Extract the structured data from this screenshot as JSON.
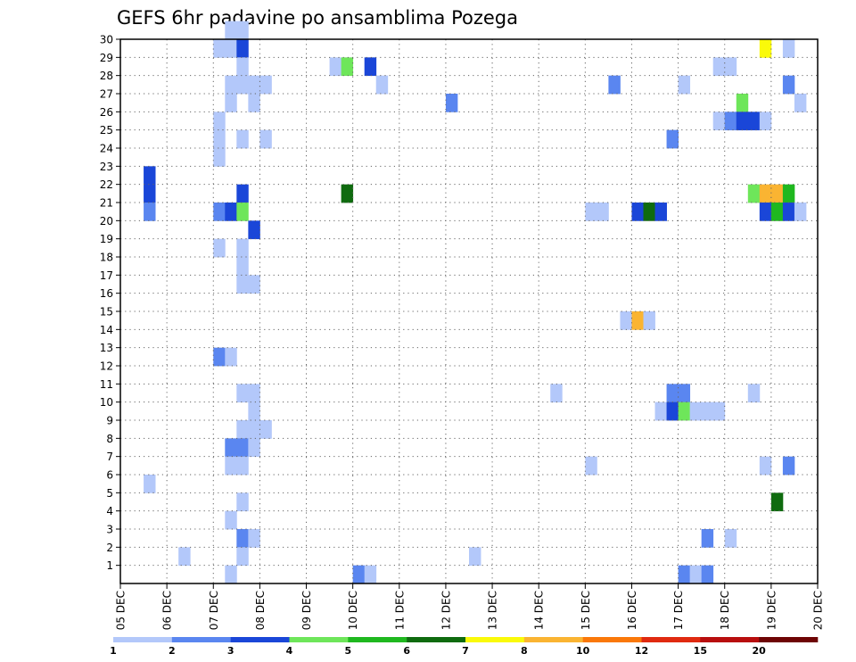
{
  "chart_data": {
    "type": "heatmap",
    "title": "GEFS 6hr padavine po ansamblima Pozega",
    "x_tick_labels": [
      "05 DEC",
      "06 DEC",
      "07 DEC",
      "08 DEC",
      "09 DEC",
      "10 DEC",
      "11 DEC",
      "12 DEC",
      "13 DEC",
      "14 DEC",
      "15 DEC",
      "16 DEC",
      "17 DEC",
      "18 DEC",
      "19 DEC",
      "20 DEC"
    ],
    "x_days_per_tick": 1,
    "steps_per_day": 4,
    "y_tick_labels": [
      "1",
      "2",
      "3",
      "4",
      "5",
      "6",
      "7",
      "8",
      "9",
      "10",
      "11",
      "12",
      "13",
      "14",
      "15",
      "16",
      "17",
      "18",
      "19",
      "20",
      "21",
      "22",
      "23",
      "24",
      "25",
      "26",
      "27",
      "28",
      "29",
      "30"
    ],
    "ylim": [
      0,
      30
    ],
    "grid": true,
    "legend_position": "bottom",
    "legend": {
      "labels": [
        "1",
        "2",
        "3",
        "4",
        "5",
        "6",
        "7",
        "8",
        "10",
        "12",
        "15",
        "20"
      ],
      "colors": [
        "#b3c8fa",
        "#5a86f0",
        "#1a46d8",
        "#6ee65a",
        "#1fb81f",
        "#0f6b0f",
        "#fafa0a",
        "#fab432",
        "#fa780a",
        "#e02a10",
        "#b80e0e",
        "#6e0404"
      ]
    },
    "cells": [
      [
        9,
        30,
        1
      ],
      [
        10,
        30,
        1
      ],
      [
        8,
        29,
        1
      ],
      [
        9,
        29,
        1
      ],
      [
        10,
        29,
        3
      ],
      [
        55,
        29,
        7
      ],
      [
        57,
        29,
        1
      ],
      [
        10,
        28,
        1
      ],
      [
        18,
        28,
        1
      ],
      [
        19,
        28,
        4
      ],
      [
        21,
        28,
        3
      ],
      [
        51,
        28,
        1
      ],
      [
        52,
        28,
        1
      ],
      [
        9,
        27,
        1
      ],
      [
        10,
        27,
        1
      ],
      [
        11,
        27,
        1
      ],
      [
        12,
        27,
        1
      ],
      [
        22,
        27,
        1
      ],
      [
        42,
        27,
        2
      ],
      [
        48,
        27,
        1
      ],
      [
        57,
        27,
        2
      ],
      [
        9,
        26,
        1
      ],
      [
        11,
        26,
        1
      ],
      [
        28,
        26,
        2
      ],
      [
        53,
        26,
        4
      ],
      [
        58,
        26,
        1
      ],
      [
        8,
        25,
        1
      ],
      [
        51,
        25,
        1
      ],
      [
        52,
        25,
        2
      ],
      [
        53,
        25,
        3
      ],
      [
        54,
        25,
        3
      ],
      [
        55,
        25,
        1
      ],
      [
        8,
        24,
        1
      ],
      [
        10,
        24,
        1
      ],
      [
        12,
        24,
        1
      ],
      [
        47,
        24,
        2
      ],
      [
        8,
        23,
        1
      ],
      [
        2,
        22,
        3
      ],
      [
        2,
        21,
        3
      ],
      [
        10,
        21,
        3
      ],
      [
        19,
        21,
        6
      ],
      [
        54,
        21,
        4
      ],
      [
        55,
        21,
        8
      ],
      [
        56,
        21,
        8
      ],
      [
        57,
        21,
        5
      ],
      [
        2,
        20,
        2
      ],
      [
        8,
        20,
        2
      ],
      [
        9,
        20,
        3
      ],
      [
        10,
        20,
        4
      ],
      [
        40,
        20,
        1
      ],
      [
        41,
        20,
        1
      ],
      [
        44,
        20,
        3
      ],
      [
        45,
        20,
        6
      ],
      [
        46,
        20,
        3
      ],
      [
        55,
        20,
        3
      ],
      [
        56,
        20,
        5
      ],
      [
        57,
        20,
        3
      ],
      [
        58,
        20,
        1
      ],
      [
        11,
        19,
        3
      ],
      [
        8,
        18,
        1
      ],
      [
        10,
        18,
        1
      ],
      [
        10,
        17,
        1
      ],
      [
        10,
        16,
        1
      ],
      [
        11,
        16,
        1
      ],
      [
        43,
        14,
        1
      ],
      [
        44,
        14,
        8
      ],
      [
        45,
        14,
        1
      ],
      [
        8,
        12,
        2
      ],
      [
        9,
        12,
        1
      ],
      [
        10,
        10,
        1
      ],
      [
        11,
        10,
        1
      ],
      [
        37,
        10,
        1
      ],
      [
        47,
        10,
        2
      ],
      [
        48,
        10,
        2
      ],
      [
        54,
        10,
        1
      ],
      [
        11,
        9,
        1
      ],
      [
        46,
        9,
        1
      ],
      [
        47,
        9,
        3
      ],
      [
        48,
        9,
        4
      ],
      [
        49,
        9,
        1
      ],
      [
        50,
        9,
        1
      ],
      [
        51,
        9,
        1
      ],
      [
        10,
        8,
        1
      ],
      [
        11,
        8,
        1
      ],
      [
        12,
        8,
        1
      ],
      [
        9,
        7,
        2
      ],
      [
        10,
        7,
        2
      ],
      [
        11,
        7,
        1
      ],
      [
        9,
        6,
        1
      ],
      [
        10,
        6,
        1
      ],
      [
        40,
        6,
        1
      ],
      [
        55,
        6,
        1
      ],
      [
        57,
        6,
        2
      ],
      [
        2,
        5,
        1
      ],
      [
        10,
        4,
        1
      ],
      [
        56,
        4,
        6
      ],
      [
        9,
        3,
        1
      ],
      [
        10,
        2,
        2
      ],
      [
        11,
        2,
        1
      ],
      [
        50,
        2,
        2
      ],
      [
        52,
        2,
        1
      ],
      [
        5,
        1,
        1
      ],
      [
        10,
        1,
        1
      ],
      [
        30,
        1,
        1
      ],
      [
        9,
        0,
        1
      ],
      [
        20,
        0,
        2
      ],
      [
        21,
        0,
        1
      ],
      [
        48,
        0,
        2
      ],
      [
        49,
        0,
        1
      ],
      [
        50,
        0,
        2
      ]
    ]
  }
}
